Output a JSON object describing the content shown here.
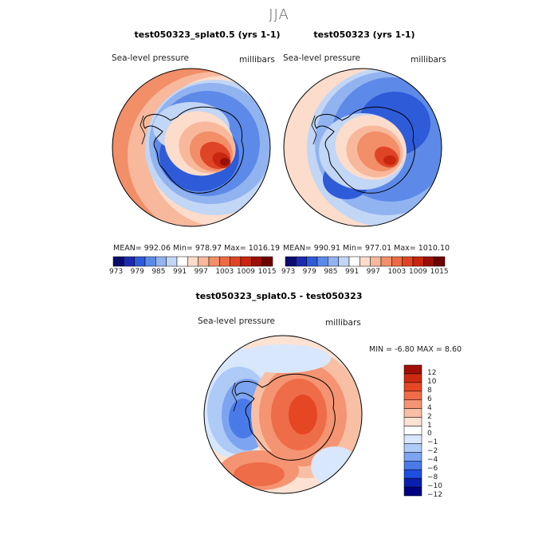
{
  "figure_title": "JJA",
  "panels": [
    {
      "title": "test050323_splat0.5 (yrs 1-1)",
      "variable": "Sea-level pressure",
      "units": "millibars",
      "stats": "MEAN=  992.06    Min=  978.97    Max=  1016.19"
    },
    {
      "title": "test050323 (yrs 1-1)",
      "variable": "Sea-level pressure",
      "units": "millibars",
      "stats": "MEAN=  990.91    Min=  977.01    Max=  1010.10"
    },
    {
      "title": "test050323_splat0.5 - test050323",
      "variable": "Sea-level pressure",
      "units": "millibars",
      "stats": "MIN =    -6.80  MAX =    8.60"
    }
  ],
  "colors": {
    "abs_scale": [
      "#0b0b6e",
      "#1b2ab0",
      "#2e5bd8",
      "#5d8ae8",
      "#91b3f0",
      "#c2d6f6",
      "#ffffff",
      "#fcdccb",
      "#f8b89c",
      "#f28e68",
      "#ec6a44",
      "#e04426",
      "#c8260f",
      "#9a0f05",
      "#6e0000"
    ],
    "diff_scale": [
      "#000080",
      "#0a1fb0",
      "#1f4fe0",
      "#4a7ae8",
      "#7da4f0",
      "#aecaf6",
      "#d8e7fb",
      "#ffffff",
      "#fde2d4",
      "#f9bfa4",
      "#f49472",
      "#ef6c48",
      "#e54724",
      "#cc2a10",
      "#a01005"
    ]
  },
  "chart_data": [
    {
      "type": "heatmap",
      "title": "test050323_splat0.5 (yrs 1-1)",
      "projection": "south-polar-stereographic",
      "field": "Sea-level pressure",
      "units": "millibars",
      "mean": 992.06,
      "min": 978.97,
      "max": 1016.19,
      "colorbar_ticks": [
        973,
        979,
        985,
        991,
        997,
        1003,
        1009,
        1015
      ]
    },
    {
      "type": "heatmap",
      "title": "test050323 (yrs 1-1)",
      "projection": "south-polar-stereographic",
      "field": "Sea-level pressure",
      "units": "millibars",
      "mean": 990.91,
      "min": 977.01,
      "max": 1010.1,
      "colorbar_ticks": [
        973,
        979,
        985,
        991,
        997,
        1003,
        1009,
        1015
      ]
    },
    {
      "type": "heatmap",
      "title": "test050323_splat0.5 - test050323",
      "projection": "south-polar-stereographic",
      "field": "Sea-level pressure",
      "units": "millibars",
      "min": -6.8,
      "max": 8.6,
      "colorbar_ticks": [
        12,
        10,
        8,
        6,
        4,
        2,
        1,
        0,
        -1,
        -2,
        -4,
        -6,
        -8,
        -10,
        -12
      ]
    }
  ]
}
